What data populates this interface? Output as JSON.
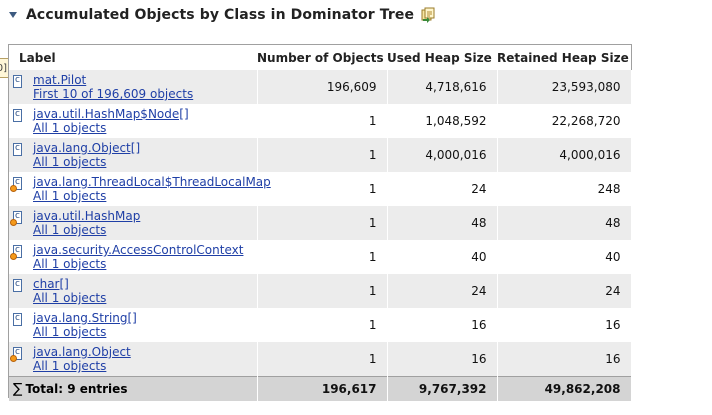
{
  "section": {
    "title": "Accumulated Objects by Class in Dominator Tree",
    "collapse_icon": "triangle-down-icon",
    "action_icon": "copy-query-icon"
  },
  "side_tab": {
    "text": "0]"
  },
  "table": {
    "headers": {
      "label": "Label",
      "objects": "Number of Objects",
      "used": "Used Heap Size",
      "retained": "Retained Heap Size"
    },
    "rows": [
      {
        "cls": "mat.Pilot",
        "objects_link": "First 10 of 196,609 objects",
        "count": "196,609",
        "used": "4,718,616",
        "retained": "23,593,080",
        "gc": false
      },
      {
        "cls": "java.util.HashMap$Node[]",
        "objects_link": "All 1 objects",
        "count": "1",
        "used": "1,048,592",
        "retained": "22,268,720",
        "gc": false
      },
      {
        "cls": "java.lang.Object[]",
        "objects_link": "All 1 objects",
        "count": "1",
        "used": "4,000,016",
        "retained": "4,000,016",
        "gc": false
      },
      {
        "cls": "java.lang.ThreadLocal$ThreadLocalMap",
        "objects_link": "All 1 objects",
        "count": "1",
        "used": "24",
        "retained": "248",
        "gc": true
      },
      {
        "cls": "java.util.HashMap",
        "objects_link": "All 1 objects",
        "count": "1",
        "used": "48",
        "retained": "48",
        "gc": true
      },
      {
        "cls": "java.security.AccessControlContext",
        "objects_link": "All 1 objects",
        "count": "1",
        "used": "40",
        "retained": "40",
        "gc": true
      },
      {
        "cls": "char[]",
        "objects_link": "All 1 objects",
        "count": "1",
        "used": "24",
        "retained": "24",
        "gc": false
      },
      {
        "cls": "java.lang.String[]",
        "objects_link": "All 1 objects",
        "count": "1",
        "used": "16",
        "retained": "16",
        "gc": false
      },
      {
        "cls": "java.lang.Object",
        "objects_link": "All 1 objects",
        "count": "1",
        "used": "16",
        "retained": "16",
        "gc": true
      }
    ],
    "total": {
      "label": "Total: 9 entries",
      "count": "196,617",
      "used": "9,767,392",
      "retained": "49,862,208"
    }
  },
  "colors": {
    "link": "#1f3fa6",
    "row_alt": "#ececec",
    "total_bg": "#d4d4d4",
    "gc_root": "#f59a1b"
  }
}
